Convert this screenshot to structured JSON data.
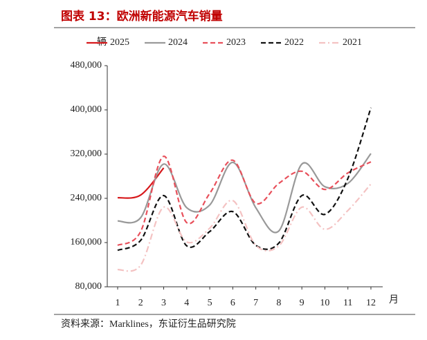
{
  "chart_data": {
    "type": "line",
    "title": "图表 13：欧洲新能源汽车销量",
    "y_label": "辆",
    "x_label": "月",
    "source": "资料来源：Marklines，东证衍生品研究院",
    "categories": [
      "1",
      "2",
      "3",
      "4",
      "5",
      "6",
      "7",
      "8",
      "9",
      "10",
      "11",
      "12"
    ],
    "ylim": [
      80000,
      480000
    ],
    "yticks": [
      {
        "value": 80000,
        "label": "80,000"
      },
      {
        "value": 160000,
        "label": "160,000"
      },
      {
        "value": 240000,
        "label": "240,000"
      },
      {
        "value": 320000,
        "label": "320,000"
      },
      {
        "value": 400000,
        "label": "400,000"
      },
      {
        "value": 480000,
        "label": "480,000"
      }
    ],
    "series": [
      {
        "name": "2025",
        "color": "#d7191c",
        "dash": "solid",
        "values": [
          241000,
          246000,
          295000,
          null,
          null,
          null,
          null,
          null,
          null,
          null,
          null,
          null
        ]
      },
      {
        "name": "2024",
        "color": "#999999",
        "dash": "solid",
        "values": [
          199000,
          205000,
          302000,
          223000,
          228000,
          305000,
          223000,
          181000,
          302000,
          261000,
          267000,
          321000
        ]
      },
      {
        "name": "2023",
        "color": "#e8505b",
        "dash": "dash",
        "values": [
          155000,
          180000,
          316000,
          196000,
          249000,
          309000,
          231000,
          267000,
          289000,
          256000,
          286000,
          306000
        ]
      },
      {
        "name": "2022",
        "color": "#111111",
        "dash": "dash",
        "values": [
          146000,
          164000,
          245000,
          154000,
          180000,
          216000,
          155000,
          159000,
          245000,
          211000,
          276000,
          404000
        ]
      },
      {
        "name": "2021",
        "color": "#f4c2c2",
        "dash": "dashdot",
        "values": [
          111000,
          119000,
          224000,
          161000,
          186000,
          236000,
          155000,
          154000,
          224000,
          184000,
          218000,
          266000
        ]
      }
    ]
  }
}
